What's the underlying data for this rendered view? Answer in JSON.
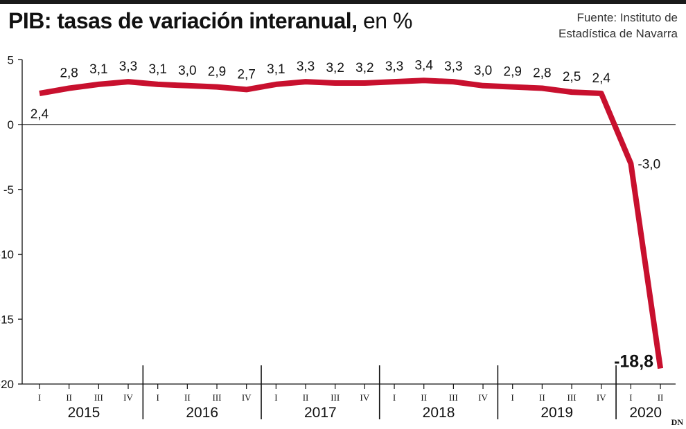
{
  "title": {
    "main": "PIB: tasas de variación interanual,",
    "unit": "en %"
  },
  "source": {
    "line1": "Fuente: Instituto de",
    "line2": "Estadística de Navarra"
  },
  "logo": "DN",
  "colors": {
    "line": "#c8102e",
    "axis": "#111111",
    "text": "#111111"
  },
  "chart_data": {
    "type": "line",
    "title": "PIB: tasas de variación interanual, en %",
    "ylim": [
      -20,
      5
    ],
    "yticks": [
      "5",
      "0",
      "-5",
      "-10",
      "-15",
      "-20"
    ],
    "ytick_values": [
      5,
      0,
      -5,
      -10,
      -15,
      -20
    ],
    "years": [
      "2015",
      "2016",
      "2017",
      "2018",
      "2019",
      "2020"
    ],
    "quarters": [
      "I",
      "II",
      "III",
      "IV",
      "I",
      "II",
      "III",
      "IV",
      "I",
      "II",
      "III",
      "IV",
      "I",
      "II",
      "III",
      "IV",
      "I",
      "II",
      "III",
      "IV",
      "I",
      "II"
    ],
    "values": [
      2.4,
      2.8,
      3.1,
      3.3,
      3.1,
      3.0,
      2.9,
      2.7,
      3.1,
      3.3,
      3.2,
      3.2,
      3.3,
      3.4,
      3.3,
      3.0,
      2.9,
      2.8,
      2.5,
      2.4,
      -3.0,
      -18.8
    ],
    "labels": [
      "2,4",
      "2,8",
      "3,1",
      "3,3",
      "3,1",
      "3,0",
      "2,9",
      "2,7",
      "3,1",
      "3,3",
      "3,2",
      "3,2",
      "3,3",
      "3,4",
      "3,3",
      "3,0",
      "2,9",
      "2,8",
      "2,5",
      "2,4",
      "-3,0",
      "-18,8"
    ],
    "grid": false,
    "legend": "none"
  }
}
